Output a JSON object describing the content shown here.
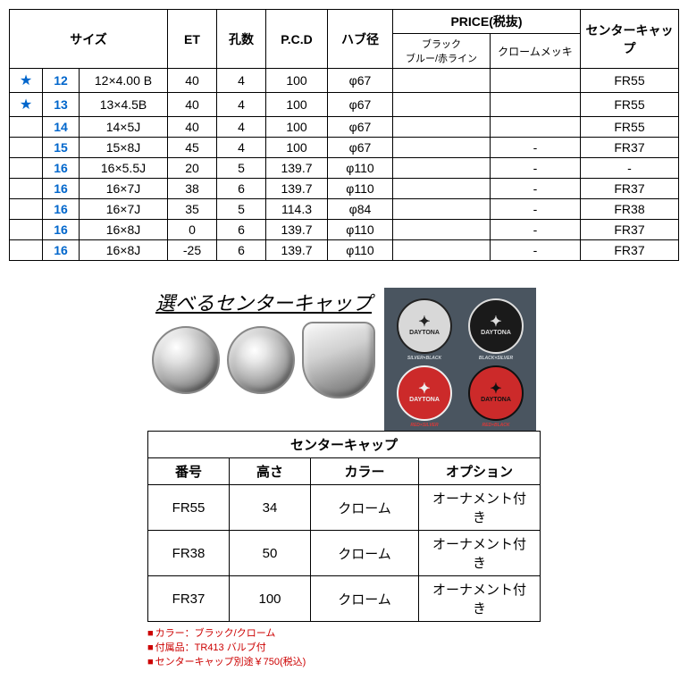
{
  "main_table": {
    "headers": {
      "size": "サイズ",
      "et": "ET",
      "holes": "孔数",
      "pcd": "P.C.D",
      "hub": "ハブ径",
      "price_group": "PRICE(税抜)",
      "price_black": "ブラック\nブルー/赤ライン",
      "price_chrome": "クロームメッキ",
      "center_cap": "センターキャップ"
    },
    "rows": [
      {
        "star": "★",
        "size_n": "12",
        "size": "12×4.00 B",
        "et": "40",
        "holes": "4",
        "pcd": "100",
        "hub": "φ67",
        "p1": "",
        "p2": "",
        "cap": "FR55"
      },
      {
        "star": "★",
        "size_n": "13",
        "size": "13×4.5B",
        "et": "40",
        "holes": "4",
        "pcd": "100",
        "hub": "φ67",
        "p1": "",
        "p2": "",
        "cap": "FR55"
      },
      {
        "star": "",
        "size_n": "14",
        "size": "14×5J",
        "et": "40",
        "holes": "4",
        "pcd": "100",
        "hub": "φ67",
        "p1": "",
        "p2": "",
        "cap": "FR55"
      },
      {
        "star": "",
        "size_n": "15",
        "size": "15×8J",
        "et": "45",
        "holes": "4",
        "pcd": "100",
        "hub": "φ67",
        "p1": "",
        "p2": "-",
        "cap": "FR37"
      },
      {
        "star": "",
        "size_n": "16",
        "size": "16×5.5J",
        "et": "20",
        "holes": "5",
        "pcd": "139.7",
        "hub": "φ110",
        "p1": "",
        "p2": "-",
        "cap": "-"
      },
      {
        "star": "",
        "size_n": "16",
        "size": "16×7J",
        "et": "38",
        "holes": "6",
        "pcd": "139.7",
        "hub": "φ110",
        "p1": "",
        "p2": "-",
        "cap": "FR37"
      },
      {
        "star": "",
        "size_n": "16",
        "size": "16×7J",
        "et": "35",
        "holes": "5",
        "pcd": "114.3",
        "hub": "φ84",
        "p1": "",
        "p2": "-",
        "cap": "FR38"
      },
      {
        "star": "",
        "size_n": "16",
        "size": "16×8J",
        "et": "0",
        "holes": "6",
        "pcd": "139.7",
        "hub": "φ110",
        "p1": "",
        "p2": "-",
        "cap": "FR37"
      },
      {
        "star": "",
        "size_n": "16",
        "size": "16×8J",
        "et": "-25",
        "holes": "6",
        "pcd": "139.7",
        "hub": "φ110",
        "p1": "",
        "p2": "-",
        "cap": "FR37"
      }
    ]
  },
  "caps_title": "選べるセンターキャップ",
  "emblem_brand": "DAYTONA",
  "emblems": [
    {
      "bg": "#d8d8d8",
      "fg": "#222",
      "label": "SILVER×BLACK",
      "label_color": "#cfd5da"
    },
    {
      "bg": "#1a1a1a",
      "fg": "#ddd",
      "label": "BLACK×SILVER",
      "label_color": "#cfd5da"
    },
    {
      "bg": "#cc2a2a",
      "fg": "#eee",
      "label": "RED×SILVER",
      "label_color": "#d83a3a"
    },
    {
      "bg": "#cc2a2a",
      "fg": "#111",
      "label": "RED×BLACK",
      "label_color": "#d83a3a"
    }
  ],
  "cap_table": {
    "title": "センターキャップ",
    "headers": {
      "no": "番号",
      "height": "高さ",
      "color": "カラー",
      "option": "オプション"
    },
    "rows": [
      {
        "no": "FR55",
        "height": "34",
        "color": "クローム",
        "option": "オーナメント付き"
      },
      {
        "no": "FR38",
        "height": "50",
        "color": "クローム",
        "option": "オーナメント付き"
      },
      {
        "no": "FR37",
        "height": "100",
        "color": "クローム",
        "option": "オーナメント付き"
      }
    ]
  },
  "notes": [
    "カラー：ブラック/クローム",
    "付属品：TR413 バルブ付",
    "センターキャップ別途￥750(税込)"
  ]
}
